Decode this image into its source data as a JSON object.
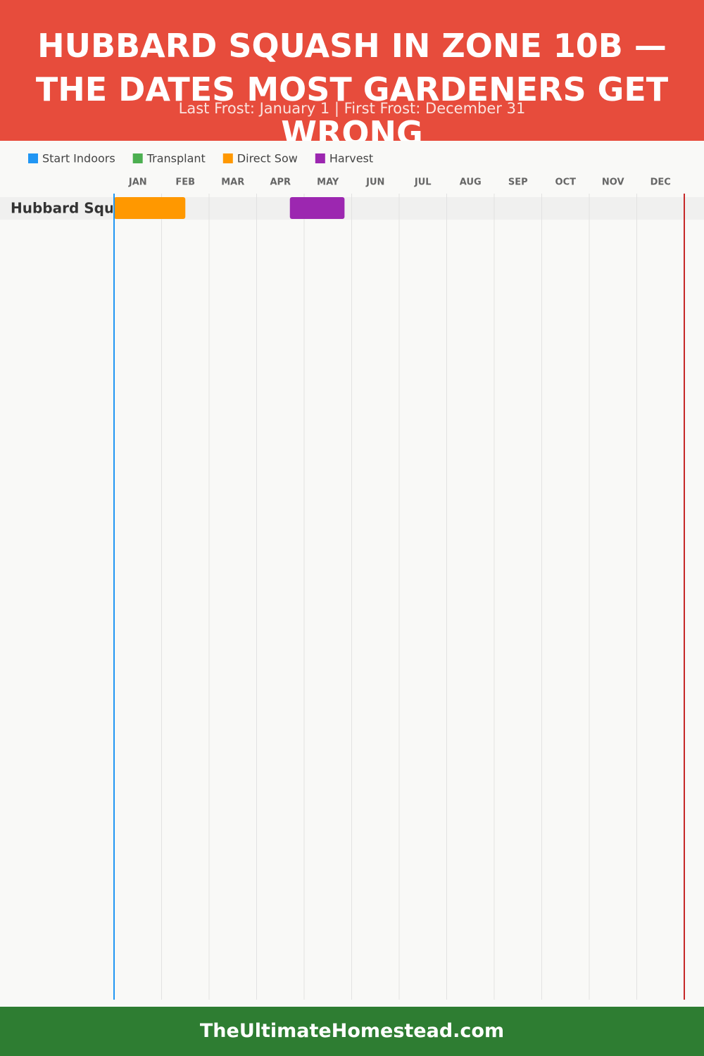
{
  "chart_data": {
    "type": "gantt",
    "title": "HUBBARD SQUASH IN ZONE 10B — THE DATES MOST GARDENERS GET WRONG",
    "subtitle": "Last Frost: January 1 | First Frost: December 31",
    "categories": [
      "JAN",
      "FEB",
      "MAR",
      "APR",
      "MAY",
      "JUN",
      "JUL",
      "AUG",
      "SEP",
      "OCT",
      "NOV",
      "DEC"
    ],
    "xlim": [
      0,
      12
    ],
    "rows": [
      "Hubbard Squash"
    ],
    "series": [
      {
        "name": "Start Indoors",
        "color": "#2196f3",
        "start": [
          null
        ],
        "end": [
          null
        ]
      },
      {
        "name": "Transplant",
        "color": "#4caf50",
        "start": [
          null
        ],
        "end": [
          null
        ]
      },
      {
        "name": "Direct Sow",
        "color": "#ff9800",
        "start": [
          0
        ],
        "end": [
          1.5
        ]
      },
      {
        "name": "Harvest",
        "color": "#9c27b0",
        "start": [
          3.7
        ],
        "end": [
          4.85
        ]
      }
    ],
    "frost_lines": [
      {
        "value": 0,
        "color": "#2196f3"
      },
      {
        "value": 12,
        "color": "#c62828"
      }
    ],
    "grid": true
  },
  "footer": "TheUltimateHomestead.com"
}
